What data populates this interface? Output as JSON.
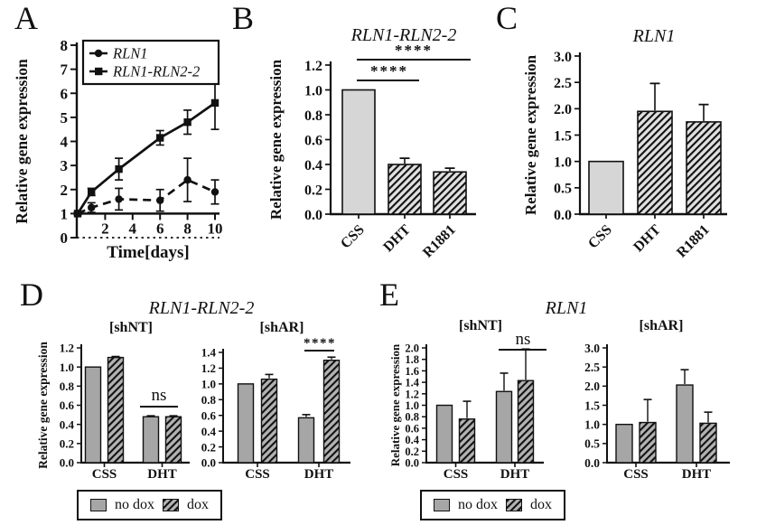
{
  "figure": {
    "background": "#ffffff"
  },
  "colors": {
    "ink": "#111111",
    "solid_bar_light": "#d6d6d6",
    "hatch_bg_light": "#e0e0e0",
    "solid_bar_gray": "#a6a6a6",
    "hatch_bg_gray": "#b2b2b2"
  },
  "panels": {
    "A": {
      "label": "A"
    },
    "B": {
      "label": "B"
    },
    "C": {
      "label": "C"
    },
    "D": {
      "label": "D",
      "title": "RLN1-RLN2-2",
      "subpanel_titles": [
        "[shNT]",
        "[shAR]"
      ],
      "legend": [
        {
          "label": "no dox",
          "style": "solid"
        },
        {
          "label": "dox",
          "style": "hatch"
        }
      ]
    },
    "E": {
      "label": "E",
      "title": "RLN1",
      "subpanel_titles": [
        "[shNT]",
        "[shAR]"
      ],
      "legend": [
        {
          "label": "no dox",
          "style": "solid"
        },
        {
          "label": "dox",
          "style": "hatch"
        }
      ]
    }
  },
  "chart_data": [
    {
      "id": "A",
      "type": "line",
      "title": "",
      "xlabel": "Time[days]",
      "ylabel": "Relative gene expression",
      "xlim": [
        0,
        10
      ],
      "ylim": [
        0,
        8
      ],
      "xticks": [
        2,
        4,
        6,
        8,
        10
      ],
      "yticks": [
        0,
        1,
        2,
        3,
        4,
        5,
        6,
        7,
        8
      ],
      "x": [
        0,
        1,
        3,
        6,
        8,
        10
      ],
      "x_axis_at_y": 1,
      "zero_line": "dotted",
      "legend_position": "inside-top-left",
      "series": [
        {
          "name": "RLN1",
          "marker": "circle",
          "line_style": "dashed",
          "values": [
            1.0,
            1.25,
            1.6,
            1.55,
            2.4,
            1.9
          ],
          "errors": [
            0.05,
            0.2,
            0.45,
            0.45,
            0.9,
            0.5
          ]
        },
        {
          "name": "RLN1-RLN2-2",
          "marker": "square",
          "line_style": "solid",
          "values": [
            1.0,
            1.9,
            2.85,
            4.15,
            4.8,
            5.6
          ],
          "errors": [
            0.05,
            0.15,
            0.45,
            0.3,
            0.5,
            1.1
          ]
        }
      ]
    },
    {
      "id": "B",
      "type": "bar",
      "title": "RLN1-RLN2-2",
      "ylabel": "Relative gene expression",
      "categories": [
        "CSS",
        "DHT",
        "R1881"
      ],
      "values": [
        1.0,
        0.4,
        0.34
      ],
      "errors": [
        0,
        0.05,
        0.03
      ],
      "bar_styles": [
        "solid",
        "hatch",
        "hatch"
      ],
      "ylim": [
        0,
        1.2
      ],
      "yticks": [
        0,
        0.2,
        0.4,
        0.6,
        0.8,
        1.0,
        1.2
      ],
      "xtick_rotation": 45,
      "significance": [
        {
          "from": "CSS",
          "to": "DHT",
          "label": "****"
        },
        {
          "from": "CSS",
          "to": "R1881",
          "label": "****"
        }
      ]
    },
    {
      "id": "C",
      "type": "bar",
      "title": "RLN1",
      "ylabel": "Relative gene expression",
      "categories": [
        "CSS",
        "DHT",
        "R1881"
      ],
      "values": [
        1.0,
        1.95,
        1.75
      ],
      "errors": [
        0,
        0.53,
        0.33
      ],
      "bar_styles": [
        "solid",
        "hatch",
        "hatch"
      ],
      "ylim": [
        0,
        3.0
      ],
      "yticks": [
        0,
        0.5,
        1.0,
        1.5,
        2.0,
        2.5,
        3.0
      ],
      "xtick_rotation": 45,
      "significance": []
    },
    {
      "id": "D-shNT",
      "type": "grouped-bar",
      "subtitle": "[shNT]",
      "ylabel": "Relative gene expression",
      "categories": [
        "CSS",
        "DHT"
      ],
      "ylim": [
        0,
        1.2
      ],
      "yticks": [
        0,
        0.2,
        0.4,
        0.6,
        0.8,
        1.0,
        1.2
      ],
      "series": [
        {
          "name": "no dox",
          "style": "solid",
          "values": [
            1.0,
            0.48
          ],
          "errors": [
            0,
            0.01
          ]
        },
        {
          "name": "dox",
          "style": "hatch",
          "values": [
            1.1,
            0.48
          ],
          "errors": [
            0.01,
            0.01
          ]
        }
      ],
      "significance": [
        {
          "group": "DHT",
          "label": "ns"
        }
      ]
    },
    {
      "id": "D-shAR",
      "type": "grouped-bar",
      "subtitle": "[shAR]",
      "ylabel": "",
      "categories": [
        "CSS",
        "DHT"
      ],
      "ylim": [
        0,
        1.4
      ],
      "yticks": [
        0,
        0.2,
        0.4,
        0.6,
        0.8,
        1.0,
        1.2,
        1.4
      ],
      "series": [
        {
          "name": "no dox",
          "style": "solid",
          "values": [
            1.0,
            0.57
          ],
          "errors": [
            0,
            0.04
          ]
        },
        {
          "name": "dox",
          "style": "hatch",
          "values": [
            1.06,
            1.3
          ],
          "errors": [
            0.06,
            0.04
          ]
        }
      ],
      "significance": [
        {
          "group": "DHT",
          "label": "****"
        }
      ]
    },
    {
      "id": "E-shNT",
      "type": "grouped-bar",
      "subtitle": "[shNT]",
      "ylabel": "Relative gene expression",
      "categories": [
        "CSS",
        "DHT"
      ],
      "ylim": [
        0,
        2.0
      ],
      "yticks": [
        0,
        0.2,
        0.4,
        0.6,
        0.8,
        1.0,
        1.2,
        1.4,
        1.6,
        1.8,
        2.0
      ],
      "series": [
        {
          "name": "no dox",
          "style": "solid",
          "values": [
            1.0,
            1.24
          ],
          "errors": [
            0,
            0.32
          ]
        },
        {
          "name": "dox",
          "style": "hatch",
          "values": [
            0.76,
            1.43
          ],
          "errors": [
            0.31,
            0.55
          ]
        }
      ],
      "significance": [
        {
          "group": "DHT",
          "label": "ns"
        }
      ]
    },
    {
      "id": "E-shAR",
      "type": "grouped-bar",
      "subtitle": "[shAR]",
      "ylabel": "",
      "categories": [
        "CSS",
        "DHT"
      ],
      "ylim": [
        0,
        3.0
      ],
      "yticks": [
        0,
        0.5,
        1.0,
        1.5,
        2.0,
        2.5,
        3.0
      ],
      "series": [
        {
          "name": "no dox",
          "style": "solid",
          "values": [
            1.0,
            2.03
          ],
          "errors": [
            0,
            0.4
          ]
        },
        {
          "name": "dox",
          "style": "hatch",
          "values": [
            1.05,
            1.03
          ],
          "errors": [
            0.6,
            0.29
          ]
        }
      ],
      "significance": []
    }
  ]
}
